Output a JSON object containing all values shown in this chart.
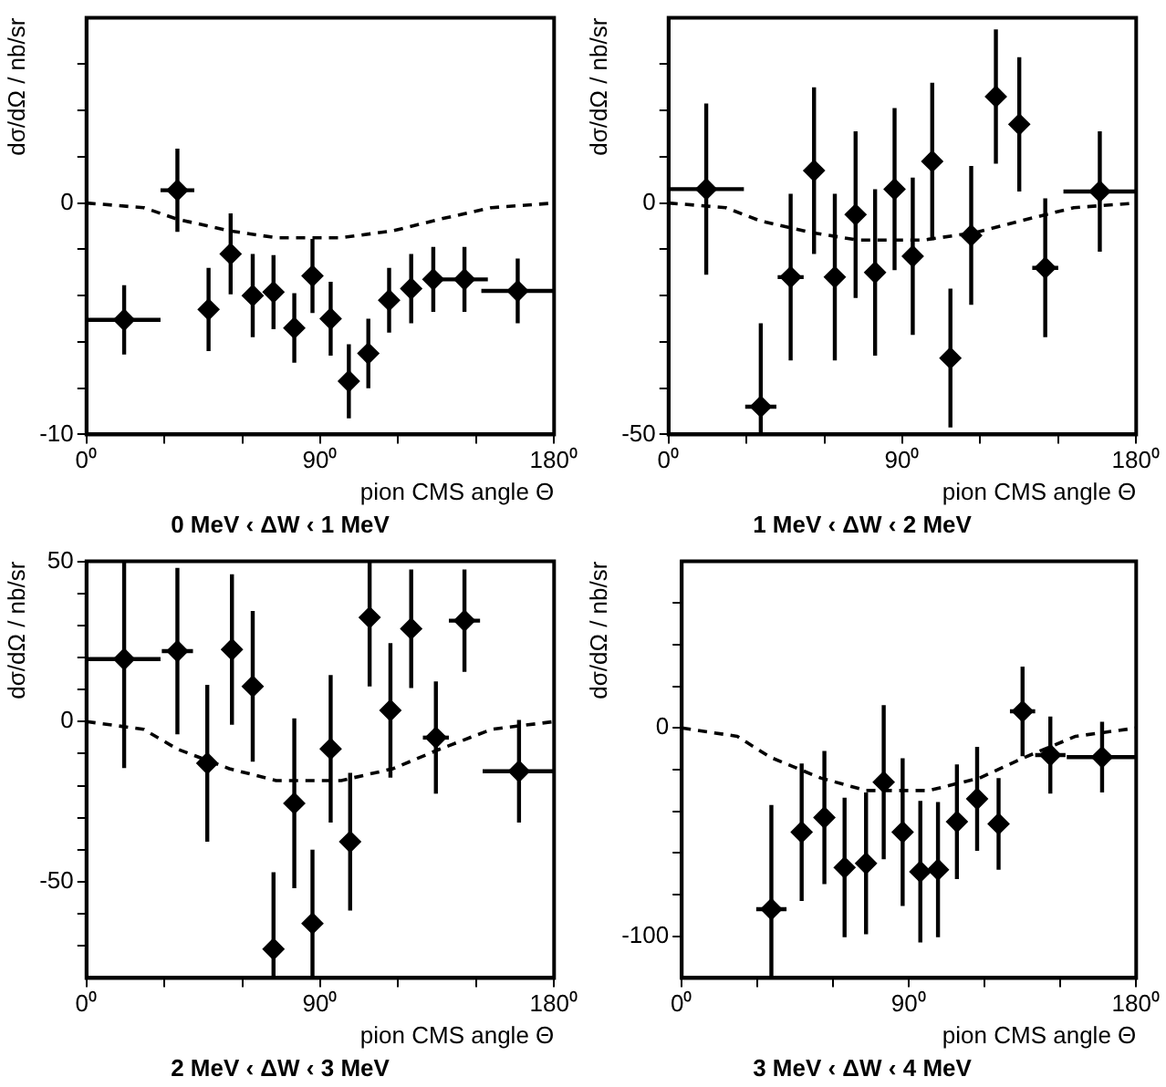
{
  "chart_data": [
    {
      "type": "scatter",
      "title": "0 MeV ‹ ΔW ‹ 1 MeV",
      "xlabel": "pion CMS angle Θ",
      "ylabel": "dσ/dΩ / nb/sr",
      "marker": "diamond",
      "xlim": [
        0,
        180
      ],
      "xticks": [
        {
          "value": 0,
          "label": "0⁰"
        },
        {
          "value": 30,
          "label": null
        },
        {
          "value": 60,
          "label": null
        },
        {
          "value": 90,
          "label": "90⁰"
        },
        {
          "value": 120,
          "label": null
        },
        {
          "value": 150,
          "label": null
        },
        {
          "value": 180,
          "label": "180⁰"
        }
      ],
      "ylim": [
        -10,
        8
      ],
      "yticks": [
        -10,
        {
          "value": -8,
          "label": null
        },
        {
          "value": -6,
          "label": null
        },
        {
          "value": -4,
          "label": null
        },
        {
          "value": -2,
          "label": null
        },
        0,
        {
          "value": 2,
          "label": null
        },
        {
          "value": 4,
          "label": null
        },
        {
          "value": 6,
          "label": null
        }
      ],
      "series": [
        {
          "type": "scatter",
          "color": "#000000",
          "x": [
            14.5,
            35,
            47,
            55.5,
            64,
            72,
            80,
            87,
            94,
            101,
            108.5,
            116.5,
            125,
            133.5,
            145.5,
            166
          ],
          "values": [
            -5.05,
            0.55,
            -4.6,
            -2.2,
            -4.0,
            -3.85,
            -5.4,
            -3.15,
            -5.0,
            -7.7,
            -6.5,
            -4.2,
            -3.7,
            -3.3,
            -3.3,
            -3.8
          ],
          "errors": [
            1.5,
            1.8,
            1.8,
            1.75,
            1.8,
            1.6,
            1.5,
            1.6,
            1.6,
            1.6,
            1.5,
            1.4,
            1.5,
            1.4,
            1.4,
            1.4
          ],
          "xerrors": [
            14,
            6.5,
            null,
            null,
            null,
            null,
            null,
            null,
            null,
            null,
            null,
            null,
            null,
            null,
            9,
            14
          ]
        },
        {
          "type": "line",
          "color": "#000000",
          "line_style": "dashed",
          "marker": "none",
          "x": [
            0,
            22,
            35,
            55,
            73,
            98,
            118,
            136,
            156,
            180
          ],
          "values": [
            0,
            -0.2,
            -0.7,
            -1.2,
            -1.5,
            -1.5,
            -1.2,
            -0.7,
            -0.2,
            0
          ]
        }
      ]
    },
    {
      "type": "scatter",
      "title": "1 MeV ‹ ΔW ‹ 2 MeV",
      "xlabel": "pion CMS angle Θ",
      "ylabel": "dσ/dΩ / nb/sr",
      "marker": "diamond",
      "xlim": [
        0,
        180
      ],
      "xticks": [
        {
          "value": 0,
          "label": "0⁰"
        },
        {
          "value": 30,
          "label": null
        },
        {
          "value": 60,
          "label": null
        },
        {
          "value": 90,
          "label": "90⁰"
        },
        {
          "value": 120,
          "label": null
        },
        {
          "value": 150,
          "label": null
        },
        {
          "value": 180,
          "label": "180⁰"
        }
      ],
      "ylim": [
        -50,
        40
      ],
      "yticks": [
        -50,
        {
          "value": -40,
          "label": null
        },
        {
          "value": -30,
          "label": null
        },
        {
          "value": -20,
          "label": null
        },
        {
          "value": -10,
          "label": null
        },
        0,
        {
          "value": 10,
          "label": null
        },
        {
          "value": 20,
          "label": null
        },
        {
          "value": 30,
          "label": null
        }
      ],
      "series": [
        {
          "type": "scatter",
          "color": "#000000",
          "x": [
            14.5,
            35.5,
            47,
            56,
            64,
            72,
            79.5,
            87,
            94,
            101.5,
            108.5,
            116.5,
            126,
            135,
            145,
            166
          ],
          "values": [
            3,
            -44,
            -16,
            7,
            -16,
            -2.5,
            -15,
            3,
            -11.5,
            9,
            -33.5,
            -7,
            23,
            17,
            -14,
            2.5
          ],
          "errors": [
            18.5,
            18,
            18,
            18,
            18,
            18,
            18,
            17.5,
            17,
            17,
            15,
            15,
            14.5,
            14.5,
            15,
            13
          ],
          "xerrors": [
            14.5,
            6,
            5,
            null,
            null,
            null,
            null,
            null,
            null,
            null,
            null,
            null,
            null,
            null,
            5,
            14
          ]
        },
        {
          "type": "line",
          "color": "#000000",
          "line_style": "dashed",
          "marker": "none",
          "x": [
            0,
            22,
            35,
            55,
            73,
            98,
            118,
            136,
            156,
            180
          ],
          "values": [
            0,
            -1,
            -3.8,
            -6.4,
            -8,
            -8,
            -6.4,
            -3.8,
            -1,
            0
          ]
        }
      ]
    },
    {
      "type": "scatter",
      "title": "2 MeV ‹ ΔW ‹ 3 MeV",
      "xlabel": "pion CMS angle Θ",
      "ylabel": "dσ/dΩ / nb/sr",
      "marker": "diamond",
      "xlim": [
        0,
        180
      ],
      "xticks": [
        {
          "value": 0,
          "label": "0⁰"
        },
        {
          "value": 30,
          "label": null
        },
        {
          "value": 60,
          "label": null
        },
        {
          "value": 90,
          "label": "90⁰"
        },
        {
          "value": 120,
          "label": null
        },
        {
          "value": 150,
          "label": null
        },
        {
          "value": 180,
          "label": "180⁰"
        }
      ],
      "ylim": [
        -80,
        50
      ],
      "yticks": [
        {
          "value": -70,
          "label": null
        },
        {
          "value": -60,
          "label": null
        },
        -50,
        {
          "value": -40,
          "label": null
        },
        {
          "value": -30,
          "label": null
        },
        {
          "value": -20,
          "label": null
        },
        {
          "value": -10,
          "label": null
        },
        0,
        {
          "value": 10,
          "label": null
        },
        {
          "value": 20,
          "label": null
        },
        {
          "value": 30,
          "label": null
        },
        {
          "value": 40,
          "label": null
        },
        50
      ],
      "series": [
        {
          "type": "scatter",
          "color": "#000000",
          "x": [
            14.5,
            35,
            46.5,
            56,
            64,
            72,
            80,
            87,
            94,
            101.5,
            109,
            117,
            125,
            134.5,
            145.5,
            166.5
          ],
          "values": [
            19.5,
            22,
            -13,
            22.5,
            11,
            -71,
            -25.5,
            -63,
            -8.5,
            -37.5,
            32.5,
            3.5,
            29,
            -5,
            31.5,
            -15.5
          ],
          "errors": [
            34,
            26,
            24.5,
            23.5,
            23.5,
            24,
            26.5,
            23,
            23,
            21.5,
            21.5,
            21,
            18.5,
            17.5,
            16,
            16
          ],
          "xerrors": [
            14,
            6,
            null,
            null,
            null,
            null,
            null,
            null,
            null,
            null,
            null,
            null,
            null,
            5,
            6,
            14
          ]
        },
        {
          "type": "line",
          "color": "#000000",
          "line_style": "dashed",
          "marker": "none",
          "x": [
            0,
            22,
            35,
            55,
            73,
            98,
            118,
            136,
            156,
            180
          ],
          "values": [
            0,
            -2.4,
            -8.6,
            -14.7,
            -18.4,
            -18.4,
            -14.7,
            -8.6,
            -2.4,
            0
          ]
        }
      ]
    },
    {
      "type": "scatter",
      "title": "3 MeV ‹ ΔW ‹ 4 MeV",
      "xlabel": "pion CMS angle Θ",
      "ylabel": "dσ/dΩ / nb/sr",
      "marker": "diamond",
      "xlim": [
        0,
        180
      ],
      "xticks": [
        {
          "value": 0,
          "label": "0⁰"
        },
        {
          "value": 30,
          "label": null
        },
        {
          "value": 60,
          "label": null
        },
        {
          "value": 90,
          "label": "90⁰"
        },
        {
          "value": 120,
          "label": null
        },
        {
          "value": 150,
          "label": null
        },
        {
          "value": 180,
          "label": "180⁰"
        }
      ],
      "ylim": [
        -120,
        80
      ],
      "yticks": [
        -100,
        {
          "value": -80,
          "label": null
        },
        {
          "value": -60,
          "label": null
        },
        {
          "value": -40,
          "label": null
        },
        {
          "value": -20,
          "label": null
        },
        0,
        {
          "value": 20,
          "label": null
        },
        {
          "value": 40,
          "label": null
        },
        {
          "value": 60,
          "label": null
        }
      ],
      "series": [
        {
          "type": "scatter",
          "color": "#000000",
          "x": [
            35.5,
            47.5,
            56.5,
            64.5,
            73,
            80,
            87.5,
            94.5,
            101.5,
            109,
            117,
            125.5,
            135,
            146,
            166.5
          ],
          "values": [
            -87,
            -50,
            -43,
            -67,
            -65,
            -26,
            -50,
            -69,
            -68,
            -45,
            -34,
            -46,
            8,
            -13,
            -14
          ],
          "errors": [
            50,
            33,
            32,
            33.5,
            34,
            37,
            35.5,
            34,
            32.5,
            27.5,
            25,
            22,
            21.5,
            18.5,
            17
          ],
          "xerrors": [
            6,
            null,
            null,
            null,
            null,
            null,
            null,
            null,
            null,
            null,
            null,
            null,
            5,
            6,
            14
          ]
        },
        {
          "type": "line",
          "color": "#000000",
          "line_style": "dashed",
          "marker": "none",
          "x": [
            0,
            22,
            35,
            55,
            73,
            98,
            118,
            136,
            156,
            180
          ],
          "values": [
            0,
            -4,
            -14,
            -24,
            -30,
            -30,
            -24,
            -14,
            -4,
            0
          ]
        }
      ]
    }
  ]
}
